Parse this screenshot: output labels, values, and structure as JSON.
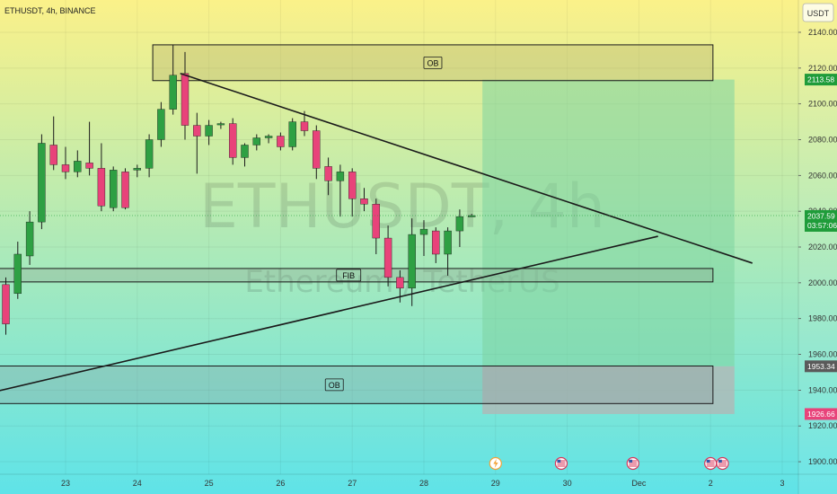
{
  "header": {
    "title": "ETHUSDT, 4h, BINANCE",
    "currency": "USDT"
  },
  "watermark": {
    "symbol": "ETHUSDT, 4h",
    "description": "Ethereum / TetherUS"
  },
  "colors": {
    "up": "#2ea043",
    "down": "#e8437a",
    "bg_top": "#fbf189",
    "bg_bottom": "#5fe3e8",
    "profit_zone": "#7dd3a0",
    "loss_zone": "#b4b4b4",
    "current_price_tag": "#1f9c3a",
    "tp_tag": "#1f9c3a",
    "sl_tag": "#e8437a",
    "entry_tag": "#5a5a5a"
  },
  "chart_data": {
    "type": "candlestick",
    "symbol": "ETHUSDT",
    "timeframe": "4h",
    "exchange": "BINANCE",
    "ylim": [
      1893,
      2143
    ],
    "y_ticks": [
      1900,
      1920,
      1940,
      1960,
      1980,
      2000,
      2020,
      2040,
      2060,
      2080,
      2100,
      2120,
      2140
    ],
    "y_tick_labels": [
      "1900.00",
      "1920.00",
      "1940.00",
      "1960.00",
      "1980.00",
      "2000.00",
      "2020.00",
      "2040.00",
      "2060.00",
      "2080.00",
      "2100.00",
      "2120.00",
      "2140.00"
    ],
    "x_ticks": [
      {
        "label": "23",
        "bar": 5
      },
      {
        "label": "24",
        "bar": 11
      },
      {
        "label": "25",
        "bar": 17
      },
      {
        "label": "26",
        "bar": 23
      },
      {
        "label": "27",
        "bar": 29
      },
      {
        "label": "28",
        "bar": 35
      },
      {
        "label": "29",
        "bar": 41
      },
      {
        "label": "30",
        "bar": 47
      },
      {
        "label": "Dec",
        "bar": 53
      },
      {
        "label": "2",
        "bar": 59
      },
      {
        "label": "3",
        "bar": 65
      }
    ],
    "candles": [
      {
        "o": 1999,
        "h": 2003,
        "l": 1971,
        "c": 1977
      },
      {
        "o": 1994,
        "h": 2023,
        "l": 1991,
        "c": 2016
      },
      {
        "o": 2015,
        "h": 2040,
        "l": 2010,
        "c": 2034
      },
      {
        "o": 2034,
        "h": 2083,
        "l": 2030,
        "c": 2078
      },
      {
        "o": 2077,
        "h": 2093,
        "l": 2063,
        "c": 2066
      },
      {
        "o": 2066,
        "h": 2076,
        "l": 2058,
        "c": 2062
      },
      {
        "o": 2062,
        "h": 2074,
        "l": 2059,
        "c": 2068
      },
      {
        "o": 2067,
        "h": 2090,
        "l": 2060,
        "c": 2064
      },
      {
        "o": 2064,
        "h": 2078,
        "l": 2040,
        "c": 2043
      },
      {
        "o": 2042,
        "h": 2065,
        "l": 2040,
        "c": 2063
      },
      {
        "o": 2062,
        "h": 2064,
        "l": 2041,
        "c": 2042
      },
      {
        "o": 2063,
        "h": 2066,
        "l": 2059,
        "c": 2064
      },
      {
        "o": 2064,
        "h": 2083,
        "l": 2059,
        "c": 2080
      },
      {
        "o": 2080,
        "h": 2101,
        "l": 2076,
        "c": 2097
      },
      {
        "o": 2097,
        "h": 2133,
        "l": 2094,
        "c": 2116
      },
      {
        "o": 2117,
        "h": 2129,
        "l": 2080,
        "c": 2088
      },
      {
        "o": 2088,
        "h": 2095,
        "l": 2061,
        "c": 2082
      },
      {
        "o": 2082,
        "h": 2091,
        "l": 2077,
        "c": 2088
      },
      {
        "o": 2089,
        "h": 2090,
        "l": 2086,
        "c": 2089
      },
      {
        "o": 2089,
        "h": 2092,
        "l": 2066,
        "c": 2070
      },
      {
        "o": 2070,
        "h": 2078,
        "l": 2065,
        "c": 2077
      },
      {
        "o": 2077,
        "h": 2083,
        "l": 2074,
        "c": 2081
      },
      {
        "o": 2081,
        "h": 2083,
        "l": 2078,
        "c": 2082
      },
      {
        "o": 2082,
        "h": 2084,
        "l": 2074,
        "c": 2076
      },
      {
        "o": 2076,
        "h": 2092,
        "l": 2074,
        "c": 2090
      },
      {
        "o": 2090,
        "h": 2096,
        "l": 2082,
        "c": 2085
      },
      {
        "o": 2085,
        "h": 2088,
        "l": 2058,
        "c": 2064
      },
      {
        "o": 2065,
        "h": 2070,
        "l": 2049,
        "c": 2057
      },
      {
        "o": 2057,
        "h": 2066,
        "l": 2037,
        "c": 2062
      },
      {
        "o": 2062,
        "h": 2064,
        "l": 2037,
        "c": 2047
      },
      {
        "o": 2047,
        "h": 2053,
        "l": 2040,
        "c": 2044
      },
      {
        "o": 2044,
        "h": 2047,
        "l": 2016,
        "c": 2025
      },
      {
        "o": 2025,
        "h": 2032,
        "l": 1998,
        "c": 2003
      },
      {
        "o": 2003,
        "h": 2007,
        "l": 1989,
        "c": 1997
      },
      {
        "o": 1997,
        "h": 2036,
        "l": 1987,
        "c": 2027
      },
      {
        "o": 2027,
        "h": 2035,
        "l": 2015,
        "c": 2030
      },
      {
        "o": 2029,
        "h": 2031,
        "l": 2011,
        "c": 2016
      },
      {
        "o": 2016,
        "h": 2031,
        "l": 2004,
        "c": 2029
      },
      {
        "o": 2029,
        "h": 2041,
        "l": 2020,
        "c": 2037
      },
      {
        "o": 2037.5,
        "h": 2038.5,
        "l": 2036.8,
        "c": 2037.59
      }
    ],
    "zones": [
      {
        "label": "OB",
        "kind": "order-block",
        "top": 2133,
        "bottom": 2113,
        "from_bar": 12.3,
        "to_bar": 59.2
      },
      {
        "label": "FIB",
        "kind": "fib",
        "top": 2008,
        "bottom": 2000.5,
        "from_bar": -1,
        "to_bar": 59.2
      },
      {
        "label": "OB",
        "kind": "order-block",
        "top": 1953.5,
        "bottom": 1932.5,
        "from_bar": -1,
        "to_bar": 59.2
      }
    ],
    "position": {
      "type": "long",
      "entry": 1953.34,
      "take_profit": 2113.58,
      "stop_loss": 1926.66,
      "from_bar": 39.9,
      "to_bar": 61
    },
    "trendlines": [
      {
        "name": "resistance",
        "from": {
          "bar": 14.6,
          "price": 2117
        },
        "to": {
          "bar": 62.5,
          "price": 2011
        }
      },
      {
        "name": "support",
        "from": {
          "bar": -1,
          "price": 1939
        },
        "to": {
          "bar": 54.6,
          "price": 2026
        }
      }
    ],
    "price_tags": [
      {
        "kind": "take-profit",
        "value": "2113.58",
        "price": 2113.58
      },
      {
        "kind": "current",
        "value": "2037.59",
        "sub": "03:57:06",
        "price": 2037.59
      },
      {
        "kind": "entry",
        "value": "1953.34",
        "price": 1953.34
      },
      {
        "kind": "stop-loss",
        "value": "1926.66",
        "price": 1926.66
      }
    ],
    "event_markers": [
      {
        "kind": "lightning",
        "bar": 41
      },
      {
        "kind": "flag-us",
        "bar": 46.5
      },
      {
        "kind": "flag-us",
        "bar": 52.5
      },
      {
        "kind": "flag-us",
        "bar": 59
      },
      {
        "kind": "flag-us",
        "bar": 60
      }
    ]
  }
}
